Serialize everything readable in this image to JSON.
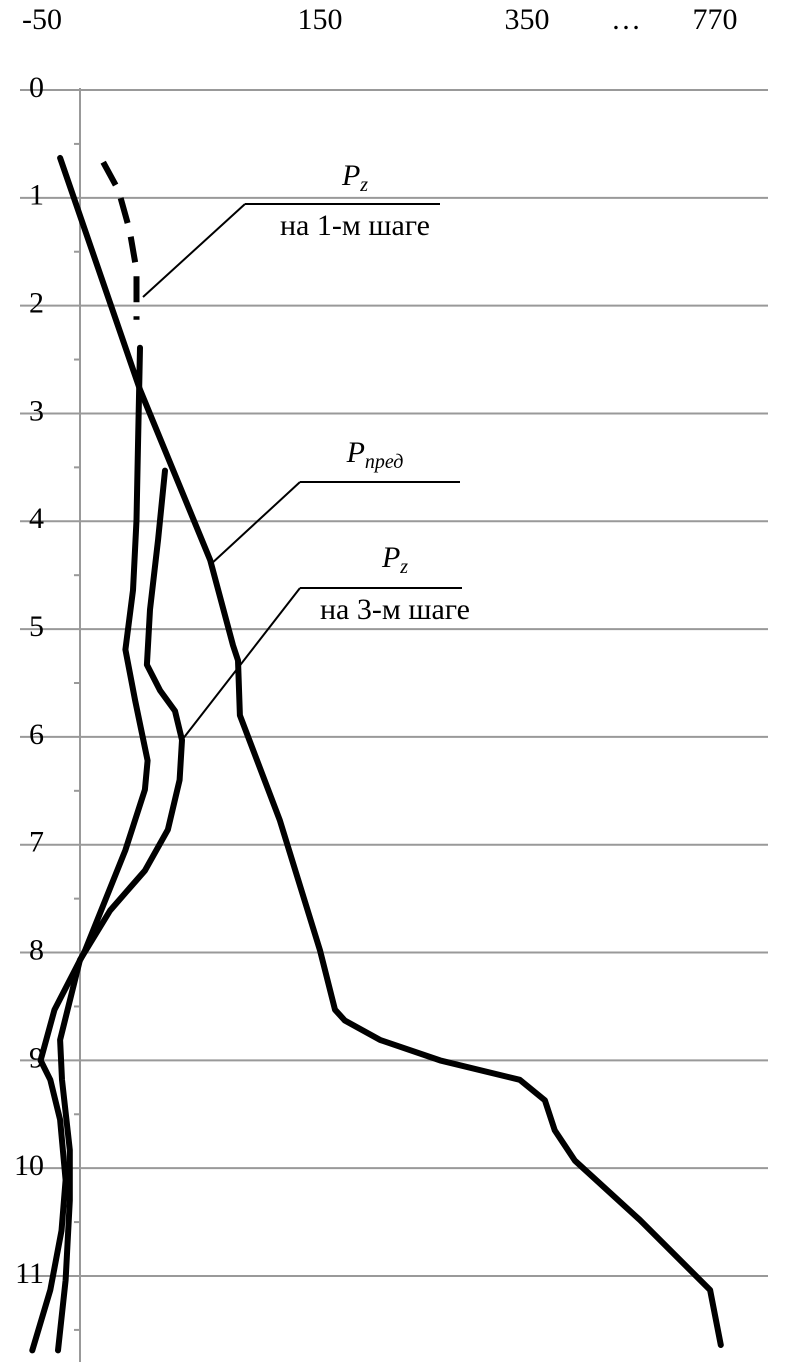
{
  "chart_data": {
    "type": "line",
    "xlim": [
      -50,
      770
    ],
    "xticks": [
      -50,
      150,
      350,
      770
    ],
    "x_break_label": "…",
    "ylim": [
      0,
      11.7
    ],
    "yticks": [
      0,
      1,
      2,
      3,
      4,
      5,
      6,
      7,
      8,
      9,
      10,
      11
    ],
    "y_inverted": true,
    "grid": true,
    "color": "#000000",
    "series": [
      {
        "style": "dashed",
        "x": [
          -6,
          5,
          13,
          18,
          18
        ],
        "y": [
          0.67,
          0.93,
          1.3,
          1.67,
          2.13
        ]
      },
      {
        "style": "solid",
        "x": [
          20.5,
          19,
          18,
          15.5,
          10,
          17,
          26,
          24,
          10,
          -19,
          -41,
          -51,
          -44,
          -37,
          -33,
          -36,
          -44,
          -57
        ],
        "y": [
          2.39,
          3.34,
          3.99,
          4.64,
          5.19,
          5.66,
          6.22,
          6.49,
          7.05,
          7.98,
          8.53,
          9.0,
          9.18,
          9.55,
          10.11,
          10.58,
          11.13,
          11.69
        ]
      },
      {
        "style": "solid",
        "x": [
          -37,
          20.5,
          71,
          87.4,
          91,
          92.4,
          121,
          150,
          164.5,
          174,
          208,
          266,
          343,
          390,
          412,
          457,
          602,
          759,
          783
        ],
        "y": [
          0.63,
          2.78,
          4.36,
          5.15,
          5.29,
          5.8,
          6.77,
          7.98,
          8.53,
          8.63,
          8.81,
          9.0,
          9.18,
          9.37,
          9.65,
          9.93,
          10.48,
          11.13,
          11.64
        ]
      },
      {
        "style": "solid",
        "x": [
          38.5,
          33.5,
          27.7,
          25.5,
          35,
          45.7,
          50.7,
          49,
          40.6,
          24,
          -1,
          -22.7,
          -37,
          -35.6,
          -30,
          -30,
          -33,
          -38.5
        ],
        "y": [
          3.53,
          4.17,
          4.82,
          5.33,
          5.57,
          5.76,
          6.03,
          6.4,
          6.86,
          7.24,
          7.61,
          8.07,
          8.81,
          9.18,
          9.83,
          10.3,
          11.04,
          11.69
        ]
      }
    ],
    "annotations": [
      {
        "symbol": "P",
        "subscript": "z",
        "caption": "на 1-м шаге"
      },
      {
        "symbol": "P",
        "subscript": "пред"
      },
      {
        "symbol": "P",
        "subscript": "z",
        "caption": "на 3-м шаге"
      }
    ]
  }
}
